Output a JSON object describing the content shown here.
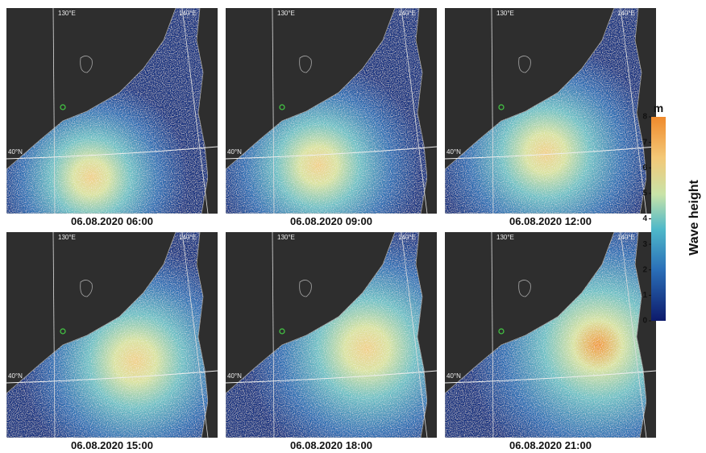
{
  "panels": [
    {
      "caption": "06.08.2020  06:00"
    },
    {
      "caption": "06.08.2020  09:00"
    },
    {
      "caption": "06.08.2020  12:00"
    },
    {
      "caption": "06.08.2020  15:00"
    },
    {
      "caption": "06.08.2020  18:00"
    },
    {
      "caption": "06.08.2020  21:00"
    }
  ],
  "grid_labels": {
    "lon": [
      "130°E",
      "140°E"
    ],
    "lat": [
      "40°N"
    ]
  },
  "colorbar": {
    "unit": "m",
    "label": "Wave height",
    "range": [
      0,
      8
    ],
    "ticks": [
      0,
      1,
      2,
      3,
      4,
      5,
      6,
      7,
      8
    ]
  }
}
